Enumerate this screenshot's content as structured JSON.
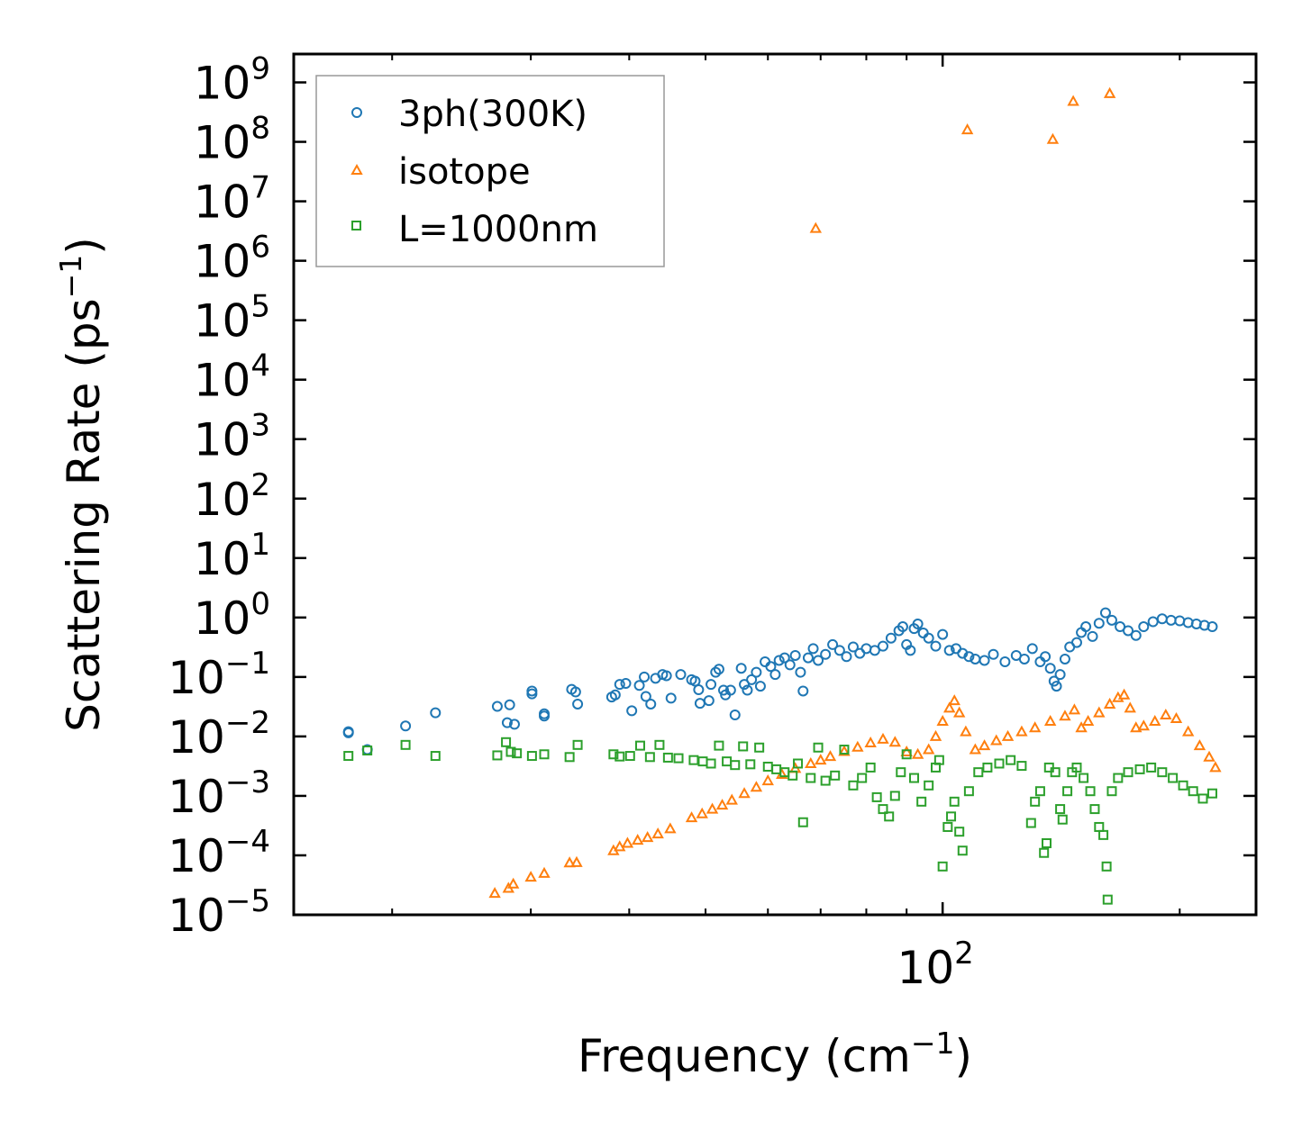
{
  "chart_data": {
    "type": "scatter",
    "xscale": "log",
    "yscale": "log",
    "xlabel": "Frequency (cm",
    "xlabel_sup": "−1",
    "xlabel_close": ")",
    "ylabel": "Scattering Rate (ps",
    "ylabel_sup": "−1",
    "ylabel_close": ")",
    "xlim": [
      15,
      250
    ],
    "ylim": [
      1e-05,
      3000000000.0
    ],
    "xticks_major": [
      {
        "value": 100,
        "base": "10",
        "exp": "2"
      }
    ],
    "xticks_minor": [
      20,
      30,
      40,
      50,
      60,
      70,
      80,
      90,
      200
    ],
    "yticks": [
      {
        "value": 1e-05,
        "base": "10",
        "exp": "−5"
      },
      {
        "value": 0.0001,
        "base": "10",
        "exp": "−4"
      },
      {
        "value": 0.001,
        "base": "10",
        "exp": "−3"
      },
      {
        "value": 0.01,
        "base": "10",
        "exp": "−2"
      },
      {
        "value": 0.1,
        "base": "10",
        "exp": "−1"
      },
      {
        "value": 1.0,
        "base": "10",
        "exp": "0"
      },
      {
        "value": 10.0,
        "base": "10",
        "exp": "1"
      },
      {
        "value": 100.0,
        "base": "10",
        "exp": "2"
      },
      {
        "value": 1000.0,
        "base": "10",
        "exp": "3"
      },
      {
        "value": 10000.0,
        "base": "10",
        "exp": "4"
      },
      {
        "value": 100000.0,
        "base": "10",
        "exp": "5"
      },
      {
        "value": 1000000.0,
        "base": "10",
        "exp": "6"
      },
      {
        "value": 10000000.0,
        "base": "10",
        "exp": "7"
      },
      {
        "value": 100000000.0,
        "base": "10",
        "exp": "8"
      },
      {
        "value": 1000000000.0,
        "base": "10",
        "exp": "9"
      }
    ],
    "legend": {
      "position": "upper-left"
    },
    "series": [
      {
        "name": "3ph(300K)",
        "marker": "circle",
        "color": "#1f77b4",
        "points": [
          [
            17.6,
            0.012
          ],
          [
            17.6,
            0.0115
          ],
          [
            18.6,
            0.006
          ],
          [
            20.8,
            0.015
          ],
          [
            22.7,
            0.025
          ],
          [
            27.2,
            0.032
          ],
          [
            28.2,
            0.034
          ],
          [
            28.0,
            0.017
          ],
          [
            28.6,
            0.016
          ],
          [
            30.1,
            0.058
          ],
          [
            30.1,
            0.052
          ],
          [
            31.2,
            0.024
          ],
          [
            31.2,
            0.022
          ],
          [
            33.8,
            0.062
          ],
          [
            34.2,
            0.056
          ],
          [
            34.4,
            0.035
          ],
          [
            38.0,
            0.046
          ],
          [
            38.4,
            0.05
          ],
          [
            38.9,
            0.075
          ],
          [
            39.6,
            0.078
          ],
          [
            40.3,
            0.027
          ],
          [
            41.2,
            0.072
          ],
          [
            41.8,
            0.1
          ],
          [
            42.0,
            0.047
          ],
          [
            42.6,
            0.035
          ],
          [
            43.2,
            0.095
          ],
          [
            44.1,
            0.11
          ],
          [
            44.6,
            0.105
          ],
          [
            45.2,
            0.044
          ],
          [
            46.5,
            0.11
          ],
          [
            48.0,
            0.09
          ],
          [
            48.5,
            0.085
          ],
          [
            49.0,
            0.061
          ],
          [
            49.2,
            0.036
          ],
          [
            50.5,
            0.04
          ],
          [
            50.8,
            0.075
          ],
          [
            51.5,
            0.12
          ],
          [
            52.0,
            0.135
          ],
          [
            52.7,
            0.06
          ],
          [
            53.0,
            0.05
          ],
          [
            53.8,
            0.06
          ],
          [
            54.5,
            0.023
          ],
          [
            55.5,
            0.14
          ],
          [
            56.0,
            0.075
          ],
          [
            56.5,
            0.06
          ],
          [
            57.2,
            0.09
          ],
          [
            58.0,
            0.12
          ],
          [
            58.7,
            0.07
          ],
          [
            59.5,
            0.18
          ],
          [
            60.5,
            0.15
          ],
          [
            61.3,
            0.11
          ],
          [
            62.0,
            0.19
          ],
          [
            63.0,
            0.21
          ],
          [
            64.0,
            0.16
          ],
          [
            65.0,
            0.23
          ],
          [
            66.0,
            0.12
          ],
          [
            66.5,
            0.058
          ],
          [
            67.5,
            0.21
          ],
          [
            68.5,
            0.3
          ],
          [
            69.5,
            0.19
          ],
          [
            71.0,
            0.24
          ],
          [
            72.5,
            0.35
          ],
          [
            74.0,
            0.28
          ],
          [
            75.5,
            0.22
          ],
          [
            77.0,
            0.32
          ],
          [
            78.5,
            0.25
          ],
          [
            80.0,
            0.3
          ],
          [
            82.0,
            0.28
          ],
          [
            84.0,
            0.33
          ],
          [
            86.0,
            0.45
          ],
          [
            88.0,
            0.6
          ],
          [
            89.0,
            0.7
          ],
          [
            90.0,
            0.35
          ],
          [
            91.0,
            0.28
          ],
          [
            92.0,
            0.65
          ],
          [
            93.0,
            0.78
          ],
          [
            94.5,
            0.55
          ],
          [
            96.0,
            0.45
          ],
          [
            98.0,
            0.33
          ],
          [
            100.0,
            0.52
          ],
          [
            102.0,
            0.28
          ],
          [
            104.0,
            0.3
          ],
          [
            106.0,
            0.25
          ],
          [
            108.0,
            0.22
          ],
          [
            110.0,
            0.2
          ],
          [
            113.0,
            0.19
          ],
          [
            116.0,
            0.24
          ],
          [
            120.0,
            0.18
          ],
          [
            124.0,
            0.23
          ],
          [
            127.0,
            0.2
          ],
          [
            130.0,
            0.3
          ],
          [
            133.0,
            0.18
          ],
          [
            135.0,
            0.22
          ],
          [
            137.0,
            0.14
          ],
          [
            138.5,
            0.085
          ],
          [
            139.5,
            0.07
          ],
          [
            141.0,
            0.11
          ],
          [
            143.0,
            0.2
          ],
          [
            145.0,
            0.32
          ],
          [
            148.0,
            0.38
          ],
          [
            150.0,
            0.56
          ],
          [
            152.0,
            0.7
          ],
          [
            155.0,
            0.48
          ],
          [
            158.0,
            0.8
          ],
          [
            161.0,
            1.2
          ],
          [
            164.0,
            0.9
          ],
          [
            168.0,
            0.7
          ],
          [
            172.0,
            0.6
          ],
          [
            176.0,
            0.5
          ],
          [
            180.0,
            0.7
          ],
          [
            185.0,
            0.85
          ],
          [
            190.0,
            0.95
          ],
          [
            195.0,
            0.9
          ],
          [
            200.0,
            0.88
          ],
          [
            205.0,
            0.82
          ],
          [
            210.0,
            0.78
          ],
          [
            215.0,
            0.74
          ],
          [
            220.0,
            0.7
          ]
        ]
      },
      {
        "name": "isotope",
        "marker": "triangle",
        "color": "#ff7f0e",
        "points": [
          [
            27.0,
            2.3e-05
          ],
          [
            28.1,
            2.8e-05
          ],
          [
            28.5,
            3.3e-05
          ],
          [
            30.0,
            4.3e-05
          ],
          [
            31.2,
            5e-05
          ],
          [
            33.6,
            7.5e-05
          ],
          [
            34.3,
            7.6e-05
          ],
          [
            38.2,
            0.00012
          ],
          [
            38.9,
            0.00014
          ],
          [
            39.8,
            0.00016
          ],
          [
            41.0,
            0.00018
          ],
          [
            42.2,
            0.0002
          ],
          [
            43.5,
            0.00023
          ],
          [
            45.1,
            0.00028
          ],
          [
            48.0,
            0.00043
          ],
          [
            49.5,
            0.0005
          ],
          [
            51.0,
            0.0006
          ],
          [
            52.5,
            0.0007
          ],
          [
            54.0,
            0.00085
          ],
          [
            56.0,
            0.0011
          ],
          [
            58.0,
            0.0014
          ],
          [
            60.0,
            0.0018
          ],
          [
            62.5,
            0.0023
          ],
          [
            65.0,
            0.0029
          ],
          [
            68.0,
            0.0035
          ],
          [
            70.0,
            0.004
          ],
          [
            72.0,
            0.0046
          ],
          [
            75.0,
            0.0056
          ],
          [
            78.0,
            0.0066
          ],
          [
            81.0,
            0.0078
          ],
          [
            84.0,
            0.009
          ],
          [
            87.0,
            0.008
          ],
          [
            90.0,
            0.0055
          ],
          [
            93.0,
            0.005
          ],
          [
            96.0,
            0.006
          ],
          [
            98.0,
            0.01
          ],
          [
            100.0,
            0.018
          ],
          [
            102.0,
            0.03
          ],
          [
            103.5,
            0.04
          ],
          [
            105.0,
            0.025
          ],
          [
            107.0,
            0.012
          ],
          [
            110.0,
            0.006
          ],
          [
            113.0,
            0.007
          ],
          [
            117.0,
            0.0085
          ],
          [
            121.0,
            0.01
          ],
          [
            126.0,
            0.012
          ],
          [
            131.0,
            0.014
          ],
          [
            137.0,
            0.018
          ],
          [
            143.0,
            0.022
          ],
          [
            147.0,
            0.028
          ],
          [
            150.0,
            0.014
          ],
          [
            153.0,
            0.018
          ],
          [
            158.0,
            0.025
          ],
          [
            163.0,
            0.035
          ],
          [
            167.0,
            0.045
          ],
          [
            170.0,
            0.05
          ],
          [
            173.0,
            0.03
          ],
          [
            176.0,
            0.014
          ],
          [
            180.0,
            0.015
          ],
          [
            186.0,
            0.018
          ],
          [
            192.0,
            0.023
          ],
          [
            198.0,
            0.02
          ],
          [
            205.0,
            0.012
          ],
          [
            212.0,
            0.007
          ],
          [
            218.0,
            0.0045
          ],
          [
            222.0,
            0.003
          ],
          [
            69.0,
            3500000.0
          ],
          [
            107.5,
            160000000.0
          ],
          [
            138.0,
            110000000.0
          ],
          [
            146.5,
            480000000.0
          ],
          [
            163.0,
            650000000.0
          ]
        ]
      },
      {
        "name": "L=1000nm",
        "marker": "square",
        "color": "#2ca02c",
        "points": [
          [
            17.6,
            0.0047
          ],
          [
            18.6,
            0.0058
          ],
          [
            20.8,
            0.0072
          ],
          [
            22.7,
            0.0047
          ],
          [
            27.2,
            0.0048
          ],
          [
            27.9,
            0.008
          ],
          [
            28.3,
            0.0055
          ],
          [
            28.8,
            0.0052
          ],
          [
            30.1,
            0.0047
          ],
          [
            31.2,
            0.005
          ],
          [
            33.6,
            0.0045
          ],
          [
            34.4,
            0.0072
          ],
          [
            38.2,
            0.005
          ],
          [
            38.9,
            0.0046
          ],
          [
            40.1,
            0.0047
          ],
          [
            41.3,
            0.007
          ],
          [
            42.5,
            0.0045
          ],
          [
            43.7,
            0.0072
          ],
          [
            44.8,
            0.0044
          ],
          [
            46.2,
            0.0043
          ],
          [
            48.3,
            0.004
          ],
          [
            49.6,
            0.0038
          ],
          [
            50.8,
            0.0035
          ],
          [
            52.0,
            0.007
          ],
          [
            53.2,
            0.0038
          ],
          [
            54.5,
            0.0033
          ],
          [
            55.8,
            0.0068
          ],
          [
            57.0,
            0.0034
          ],
          [
            58.5,
            0.0065
          ],
          [
            60.0,
            0.0031
          ],
          [
            61.5,
            0.0028
          ],
          [
            63.0,
            0.0025
          ],
          [
            64.5,
            0.0022
          ],
          [
            65.5,
            0.0035
          ],
          [
            66.5,
            0.00036
          ],
          [
            68.0,
            0.002
          ],
          [
            69.5,
            0.0065
          ],
          [
            71.0,
            0.0018
          ],
          [
            73.0,
            0.0022
          ],
          [
            75.0,
            0.006
          ],
          [
            77.0,
            0.0015
          ],
          [
            79.0,
            0.002
          ],
          [
            81.0,
            0.003
          ],
          [
            82.5,
            0.00095
          ],
          [
            84.0,
            0.0006
          ],
          [
            85.5,
            0.00045
          ],
          [
            87.0,
            0.001
          ],
          [
            88.5,
            0.0025
          ],
          [
            90.0,
            0.005
          ],
          [
            92.0,
            0.002
          ],
          [
            94.0,
            0.0008
          ],
          [
            96.0,
            0.0015
          ],
          [
            98.0,
            0.003
          ],
          [
            99.0,
            0.004
          ],
          [
            100.0,
            6.5e-05
          ],
          [
            101.5,
            0.0003
          ],
          [
            102.5,
            0.00045
          ],
          [
            103.5,
            0.0008
          ],
          [
            105.0,
            0.00025
          ],
          [
            106.0,
            0.00012
          ],
          [
            108.0,
            0.0012
          ],
          [
            111.0,
            0.0025
          ],
          [
            114.0,
            0.003
          ],
          [
            118.0,
            0.0035
          ],
          [
            122.0,
            0.004
          ],
          [
            126.0,
            0.0032
          ],
          [
            129.5,
            0.00035
          ],
          [
            131.0,
            0.0008
          ],
          [
            133.0,
            0.0012
          ],
          [
            134.5,
            0.00011
          ],
          [
            135.5,
            0.00016
          ],
          [
            136.5,
            0.003
          ],
          [
            139.0,
            0.0025
          ],
          [
            141.0,
            0.0006
          ],
          [
            142.0,
            0.0004
          ],
          [
            144.0,
            0.0012
          ],
          [
            146.0,
            0.0025
          ],
          [
            148.0,
            0.003
          ],
          [
            151.0,
            0.002
          ],
          [
            154.0,
            0.0012
          ],
          [
            156.0,
            0.0006
          ],
          [
            158.0,
            0.0003
          ],
          [
            160.0,
            0.00022
          ],
          [
            161.5,
            6.5e-05
          ],
          [
            162.0,
            1.8e-05
          ],
          [
            164.0,
            0.0012
          ],
          [
            167.0,
            0.002
          ],
          [
            172.0,
            0.0025
          ],
          [
            178.0,
            0.0028
          ],
          [
            184.0,
            0.003
          ],
          [
            190.0,
            0.0025
          ],
          [
            196.0,
            0.002
          ],
          [
            202.0,
            0.0015
          ],
          [
            208.0,
            0.0012
          ],
          [
            214.0,
            0.0009
          ],
          [
            220.0,
            0.0011
          ]
        ]
      }
    ]
  }
}
